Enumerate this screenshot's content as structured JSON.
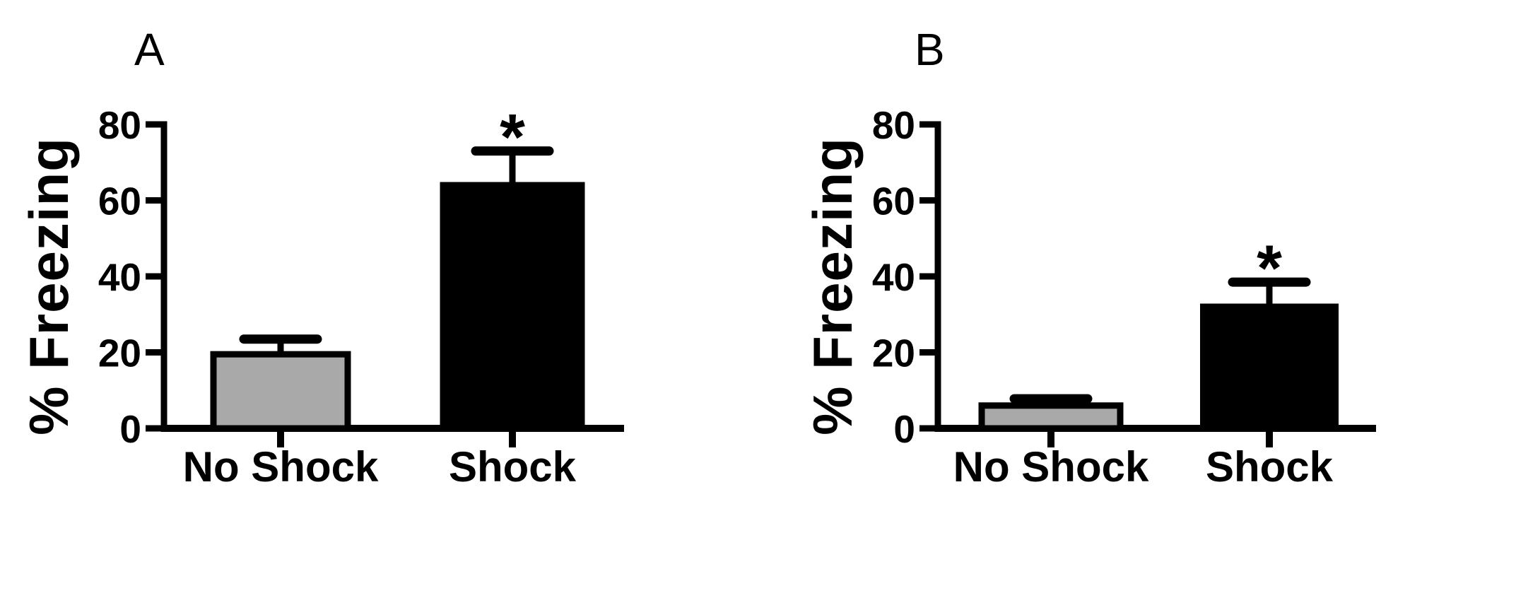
{
  "figure": {
    "background_color": "#ffffff",
    "ink_color": "#000000",
    "panel_letters": [
      "A",
      "B"
    ]
  },
  "chart_data": [
    {
      "type": "bar",
      "panel_label": "A",
      "title": "",
      "xlabel": "",
      "ylabel": "% Freezing",
      "categories": [
        "No Shock",
        "Shock"
      ],
      "values": [
        19.5,
        64
      ],
      "errors_plus": [
        4,
        9
      ],
      "error_style": "SEM upper only, capped",
      "significance": [
        "",
        "*"
      ],
      "bar_fill_colors": [
        "#a9a9a9",
        "#000000"
      ],
      "bar_edge_color": "#000000",
      "yticks": [
        0,
        20,
        40,
        60,
        80
      ],
      "ylim": [
        0,
        80
      ],
      "grid": false,
      "legend": "none"
    },
    {
      "type": "bar",
      "panel_label": "B",
      "title": "",
      "xlabel": "",
      "ylabel": "% Freezing",
      "categories": [
        "No Shock",
        "Shock"
      ],
      "values": [
        6,
        32
      ],
      "errors_plus": [
        1.8,
        6.5
      ],
      "error_style": "SEM upper only, capped",
      "significance": [
        "",
        "*"
      ],
      "bar_fill_colors": [
        "#a9a9a9",
        "#000000"
      ],
      "bar_edge_color": "#000000",
      "yticks": [
        0,
        20,
        40,
        60,
        80
      ],
      "ylim": [
        0,
        80
      ],
      "grid": false,
      "legend": "none"
    }
  ]
}
